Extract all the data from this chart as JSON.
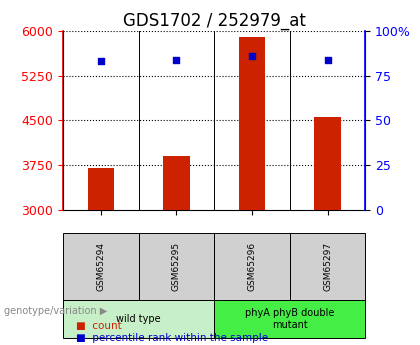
{
  "title": "GDS1702 / 252979_at",
  "samples": [
    "GSM65294",
    "GSM65295",
    "GSM65296",
    "GSM65297"
  ],
  "counts": [
    3700,
    3900,
    5900,
    4550
  ],
  "percentiles": [
    83,
    84,
    86,
    84
  ],
  "ylim_left": [
    3000,
    6000
  ],
  "ylim_right": [
    0,
    100
  ],
  "yticks_left": [
    3000,
    3750,
    4500,
    5250,
    6000
  ],
  "yticks_right": [
    0,
    25,
    50,
    75,
    100
  ],
  "bar_color": "#cc2200",
  "dot_color": "#0000cc",
  "bar_width": 0.35,
  "groups": [
    {
      "label": "wild type",
      "indices": [
        0,
        1
      ]
    },
    {
      "label": "phyA phyB double\nmutant",
      "indices": [
        2,
        3
      ]
    }
  ],
  "group_colors": [
    "#c8f0c8",
    "#44ee44"
  ],
  "legend_count_color": "#cc2200",
  "legend_dot_color": "#0000cc",
  "title_fontsize": 12,
  "tick_fontsize": 9
}
